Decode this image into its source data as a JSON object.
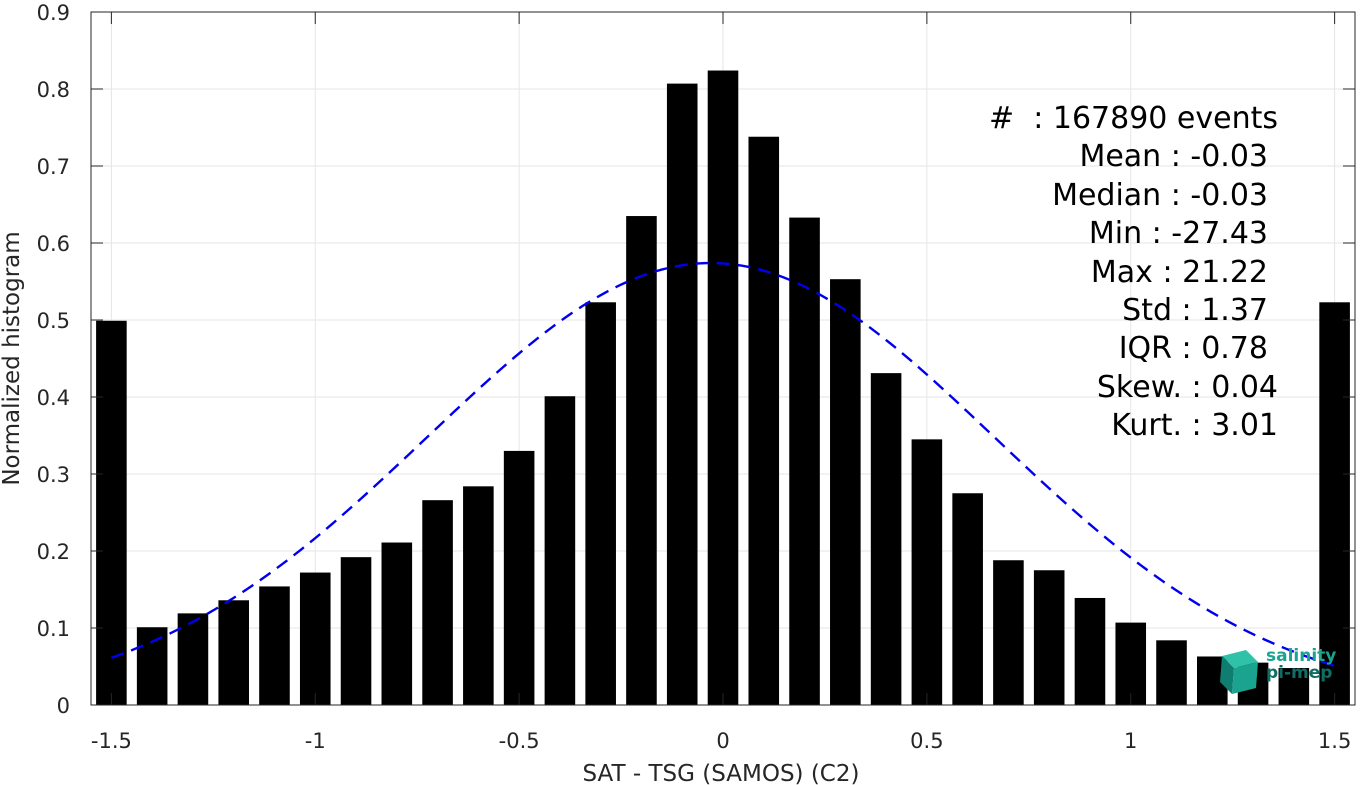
{
  "chart_data": {
    "type": "bar",
    "xlabel": "SAT - TSG (SAMOS) (C2)",
    "ylabel": "Normalized histogram",
    "xlim": [
      -1.55,
      1.55
    ],
    "ylim": [
      0,
      0.9
    ],
    "xticks": [
      "-1.5",
      "-1",
      "-0.5",
      "0",
      "0.5",
      "1",
      "1.5"
    ],
    "xtick_values": [
      -1.5,
      -1,
      -0.5,
      0,
      0.5,
      1,
      1.5
    ],
    "yticks": [
      "0",
      "0.1",
      "0.2",
      "0.3",
      "0.4",
      "0.5",
      "0.6",
      "0.7",
      "0.8",
      "0.9"
    ],
    "ytick_values": [
      0,
      0.1,
      0.2,
      0.3,
      0.4,
      0.5,
      0.6,
      0.7,
      0.8,
      0.9
    ],
    "grid": true,
    "bar_color": "#000000",
    "bar_width": 0.075,
    "bars": [
      {
        "x": -1.5,
        "y": 0.499
      },
      {
        "x": -1.4,
        "y": 0.101
      },
      {
        "x": -1.3,
        "y": 0.119
      },
      {
        "x": -1.2,
        "y": 0.136
      },
      {
        "x": -1.1,
        "y": 0.154
      },
      {
        "x": -1.0,
        "y": 0.172
      },
      {
        "x": -0.9,
        "y": 0.192
      },
      {
        "x": -0.8,
        "y": 0.211
      },
      {
        "x": -0.7,
        "y": 0.266
      },
      {
        "x": -0.6,
        "y": 0.284
      },
      {
        "x": -0.5,
        "y": 0.33
      },
      {
        "x": -0.4,
        "y": 0.401
      },
      {
        "x": -0.3,
        "y": 0.523
      },
      {
        "x": -0.2,
        "y": 0.635
      },
      {
        "x": -0.1,
        "y": 0.807
      },
      {
        "x": 0.0,
        "y": 0.824
      },
      {
        "x": 0.1,
        "y": 0.738
      },
      {
        "x": 0.2,
        "y": 0.633
      },
      {
        "x": 0.3,
        "y": 0.553
      },
      {
        "x": 0.4,
        "y": 0.431
      },
      {
        "x": 0.5,
        "y": 0.345
      },
      {
        "x": 0.6,
        "y": 0.275
      },
      {
        "x": 0.7,
        "y": 0.188
      },
      {
        "x": 0.8,
        "y": 0.175
      },
      {
        "x": 0.9,
        "y": 0.139
      },
      {
        "x": 1.0,
        "y": 0.107
      },
      {
        "x": 1.1,
        "y": 0.084
      },
      {
        "x": 1.2,
        "y": 0.063
      },
      {
        "x": 1.3,
        "y": 0.055
      },
      {
        "x": 1.4,
        "y": 0.048
      },
      {
        "x": 1.5,
        "y": 0.523
      }
    ],
    "fit_curve": {
      "style": "dashed",
      "color": "#0000ee",
      "mean": -0.03,
      "std": 0.695,
      "peak": 0.574,
      "x_range": [
        -1.5,
        1.5
      ]
    }
  },
  "stats": [
    "#  : 167890 events",
    "Mean : -0.03",
    "Median : -0.03",
    "Min : -27.43",
    "Max : 21.22",
    "Std : 1.37",
    "IQR : 0.78",
    "Skew. : 0.04",
    "Kurt. : 3.01"
  ],
  "logo": {
    "line1": "salinity",
    "line2": "pi-mep",
    "color1": "#1aa38e",
    "color2": "#0f6e64"
  }
}
